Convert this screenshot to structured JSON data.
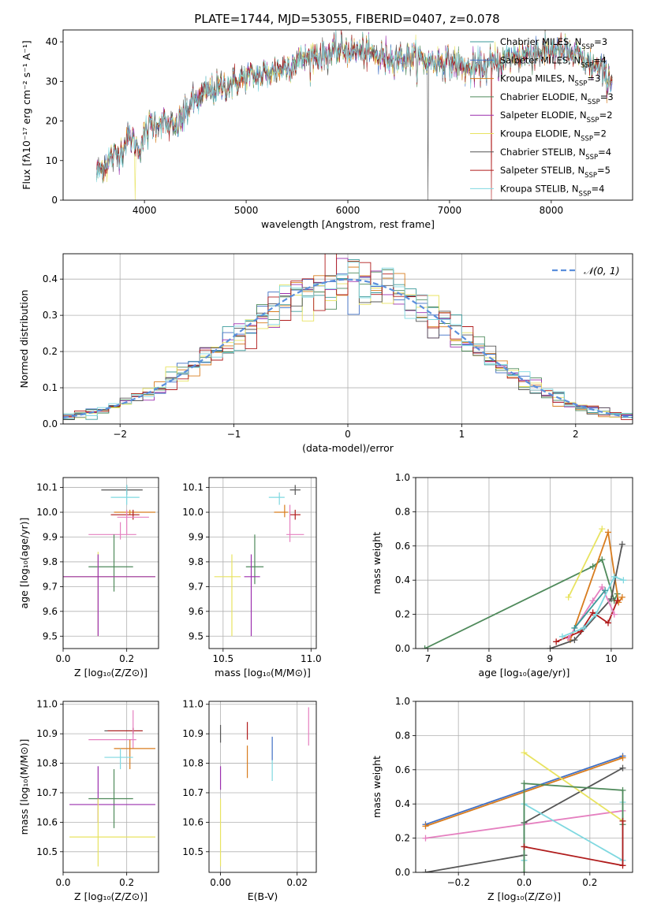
{
  "figure": {
    "title": "PLATE=1744, MJD=53055, FIBERID=0407, z=0.078"
  },
  "chart_data": [
    {
      "id": "spectrum",
      "type": "line",
      "xlabel": "wavelength [Angstrom, rest frame]",
      "ylabel": "Flux [fλ10⁻¹⁷ erg cm⁻² s⁻¹ A⁻¹]",
      "xlim": [
        3200,
        8800
      ],
      "ylim": [
        0,
        43
      ],
      "xticks": [
        4000,
        5000,
        6000,
        7000,
        8000
      ],
      "yticks": [
        0,
        10,
        20,
        30,
        40
      ],
      "grid": false,
      "legend": "right",
      "series": [
        {
          "name": "Chabrier MILES, N",
          "sub": "SSP",
          "suffix": "=3",
          "color": "#3a9a9a"
        },
        {
          "name": "Salpeter MILES, N",
          "sub": "SSP",
          "suffix": "=4",
          "color": "#3f6fc4"
        },
        {
          "name": "Kroupa MILES, N",
          "sub": "SSP",
          "suffix": "=3",
          "color": "#d87c1e"
        },
        {
          "name": "Chabrier ELODIE, N",
          "sub": "SSP",
          "suffix": "=3",
          "color": "#4f8a5b"
        },
        {
          "name": "Salpeter ELODIE, N",
          "sub": "SSP",
          "suffix": "=2",
          "color": "#9b2fae"
        },
        {
          "name": "Kroupa ELODIE, N",
          "sub": "SSP",
          "suffix": "=2",
          "color": "#e8e360"
        },
        {
          "name": "Chabrier STELIB, N",
          "sub": "SSP",
          "suffix": "=4",
          "color": "#555555"
        },
        {
          "name": "Salpeter STELIB, N",
          "sub": "SSP",
          "suffix": "=5",
          "color": "#b01c1c"
        },
        {
          "name": "Kroupa STELIB, N",
          "sub": "SSP",
          "suffix": "=4",
          "color": "#7fd8e0"
        }
      ],
      "continuum": {
        "x": [
          3530,
          3650,
          3750,
          3850,
          3950,
          4050,
          4150,
          4300,
          4450,
          4600,
          4800,
          5000,
          5200,
          5400,
          5600,
          5800,
          6000,
          6200,
          6400,
          6600,
          6800,
          7000,
          7200,
          7400,
          7600,
          7800,
          8000,
          8200,
          8400,
          8600
        ],
        "y": [
          7,
          10,
          12,
          16,
          13,
          19,
          20,
          18,
          24,
          27,
          29,
          31,
          32,
          34,
          36,
          37,
          38,
          37,
          36,
          36,
          35,
          35,
          33,
          34,
          36,
          37,
          38,
          37,
          34,
          30
        ]
      }
    },
    {
      "id": "residuals",
      "type": "histogram",
      "xlabel": "(data-model)/error",
      "ylabel": "Normed distribution",
      "xlim": [
        -2.5,
        2.5
      ],
      "ylim": [
        0,
        0.47
      ],
      "xticks": [
        -2,
        -1,
        0,
        1,
        2
      ],
      "yticks": [
        0.0,
        0.1,
        0.2,
        0.3,
        0.4
      ],
      "grid": true,
      "legend": "top-right",
      "reference": {
        "name": "𝒩(0, 1)",
        "color": "#5b8fdc",
        "style": "dashed"
      },
      "bin_width": 0.1,
      "series_colors": [
        "#3a9a9a",
        "#3f6fc4",
        "#d87c1e",
        "#4f8a5b",
        "#9b2fae",
        "#e8e360",
        "#555555",
        "#b01c1c",
        "#7fd8e0"
      ]
    },
    {
      "id": "age-vs-Z",
      "type": "errorbar",
      "xlabel": "Z [log₁₀(Z/Z⊙)]",
      "ylabel": "age  [log₁₀(age/yr)]",
      "xlim": [
        0,
        0.3
      ],
      "ylim": [
        9.45,
        10.14
      ],
      "xticks": [
        0.0,
        0.2
      ],
      "yticks": [
        9.5,
        9.6,
        9.7,
        9.8,
        9.9,
        10.0,
        10.1
      ],
      "grid": true,
      "points": [
        {
          "x": 0.2,
          "y": 10.09,
          "xerr": [
            0.08,
            0.05
          ],
          "yerr": [
            0.02,
            0.02
          ],
          "color": "#555555"
        },
        {
          "x": 0.2,
          "y": 10.06,
          "xerr": [
            0.05,
            0.04
          ],
          "yerr": [
            0.03,
            0.05
          ],
          "color": "#7fd8e0"
        },
        {
          "x": 0.21,
          "y": 10.0,
          "xerr": [
            0.05,
            0.08
          ],
          "yerr": [
            0.01,
            0.01
          ],
          "color": "#d87c1e"
        },
        {
          "x": 0.22,
          "y": 9.99,
          "xerr": [
            0.07,
            0.02
          ],
          "yerr": [
            0.02,
            0.02
          ],
          "color": "#b01c1c"
        },
        {
          "x": 0.2,
          "y": 9.98,
          "xerr": [
            0.03,
            0.07
          ],
          "yerr": [
            0.07,
            0.03
          ],
          "color": "#e580c0"
        },
        {
          "x": 0.18,
          "y": 9.91,
          "xerr": [
            0.1,
            0.05
          ],
          "yerr": [
            0.02,
            0.05
          ],
          "color": "#e580c0"
        },
        {
          "x": 0.16,
          "y": 9.78,
          "xerr": [
            0.08,
            0.06
          ],
          "yerr": [
            0.1,
            0.13
          ],
          "color": "#4f8a5b"
        },
        {
          "x": 0.11,
          "y": 9.74,
          "xerr": [
            0.11,
            0.18
          ],
          "yerr": [
            0.24,
            0.1
          ],
          "color": "#e8e360"
        },
        {
          "x": 0.11,
          "y": 9.74,
          "xerr": [
            0.11,
            0.18
          ],
          "yerr": [
            0.24,
            0.09
          ],
          "color": "#9b2fae"
        }
      ]
    },
    {
      "id": "age-vs-mass",
      "type": "errorbar",
      "xlabel": "mass [log₁₀(M/M⊙)]",
      "ylabel": "",
      "xlim": [
        10.42,
        11.03
      ],
      "ylim": [
        9.45,
        10.14
      ],
      "xticks": [
        10.5,
        11.0
      ],
      "yticks": [
        9.5,
        9.6,
        9.7,
        9.8,
        9.9,
        10.0,
        10.1
      ],
      "grid": true,
      "points": [
        {
          "x": 10.91,
          "y": 10.09,
          "xerr": [
            0.03,
            0.03
          ],
          "yerr": [
            0.02,
            0.02
          ],
          "color": "#555555"
        },
        {
          "x": 10.82,
          "y": 10.06,
          "xerr": [
            0.06,
            0.03
          ],
          "yerr": [
            0.03,
            0.02
          ],
          "color": "#7fd8e0"
        },
        {
          "x": 10.85,
          "y": 10.0,
          "xerr": [
            0.06,
            0.02
          ],
          "yerr": [
            0.02,
            0.03
          ],
          "color": "#d87c1e"
        },
        {
          "x": 10.91,
          "y": 9.99,
          "xerr": [
            0.03,
            0.03
          ],
          "yerr": [
            0.02,
            0.02
          ],
          "color": "#b01c1c"
        },
        {
          "x": 10.88,
          "y": 9.91,
          "xerr": [
            0.02,
            0.08
          ],
          "yerr": [
            0.03,
            0.12
          ],
          "color": "#e580c0"
        },
        {
          "x": 10.68,
          "y": 9.78,
          "xerr": [
            0.05,
            0.05
          ],
          "yerr": [
            0.07,
            0.13
          ],
          "color": "#4f8a5b"
        },
        {
          "x": 10.55,
          "y": 9.74,
          "xerr": [
            0.1,
            0.05
          ],
          "yerr": [
            0.24,
            0.09
          ],
          "color": "#e8e360"
        },
        {
          "x": 10.66,
          "y": 9.74,
          "xerr": [
            0.04,
            0.05
          ],
          "yerr": [
            0.24,
            0.09
          ],
          "color": "#9b2fae"
        }
      ]
    },
    {
      "id": "weight-vs-age",
      "type": "line",
      "xlabel": "age  [log₁₀(age/yr)]",
      "ylabel": "mass weight",
      "xlim": [
        6.8,
        10.35
      ],
      "ylim": [
        0,
        1
      ],
      "xticks": [
        7,
        8,
        9,
        10
      ],
      "yticks": [
        0.0,
        0.2,
        0.4,
        0.6,
        0.8,
        1.0
      ],
      "grid": true,
      "series": [
        {
          "color": "#4f8a5b",
          "x": [
            6.95,
            9.7,
            9.85,
            10.05,
            10.1
          ],
          "y": [
            0.0,
            0.48,
            0.52,
            0.28,
            0.32
          ]
        },
        {
          "color": "#e8e360",
          "x": [
            9.3,
            9.85
          ],
          "y": [
            0.3,
            0.7
          ]
        },
        {
          "color": "#d87c1e",
          "x": [
            9.33,
            9.95,
            10.12,
            10.18
          ],
          "y": [
            0.05,
            0.68,
            0.27,
            0.3
          ]
        },
        {
          "color": "#555555",
          "x": [
            9.0,
            9.4,
            10.0,
            10.18
          ],
          "y": [
            0.0,
            0.05,
            0.29,
            0.61
          ]
        },
        {
          "color": "#b01c1c",
          "x": [
            9.1,
            9.5,
            9.7,
            9.95,
            10.1
          ],
          "y": [
            0.04,
            0.1,
            0.21,
            0.15,
            0.28
          ]
        },
        {
          "color": "#e580c0",
          "x": [
            9.3,
            9.7,
            9.85,
            10.05
          ],
          "y": [
            0.06,
            0.28,
            0.36,
            0.2
          ]
        },
        {
          "color": "#7fd8e0",
          "x": [
            9.2,
            9.55,
            9.75,
            10.05,
            10.2
          ],
          "y": [
            0.07,
            0.12,
            0.2,
            0.42,
            0.4
          ]
        },
        {
          "color": "#3a9a9a",
          "x": [
            9.4,
            9.9
          ],
          "y": [
            0.12,
            0.34
          ]
        }
      ]
    },
    {
      "id": "mass-vs-Z",
      "type": "errorbar",
      "xlabel": "Z [log₁₀(Z/Z⊙)]",
      "ylabel": "mass [log₁₀(M/M⊙)]",
      "xlim": [
        0,
        0.3
      ],
      "ylim": [
        10.43,
        11.01
      ],
      "xticks": [
        0.0,
        0.2
      ],
      "yticks": [
        10.5,
        10.6,
        10.7,
        10.8,
        10.9,
        11.0
      ],
      "grid": true,
      "points": [
        {
          "x": 0.22,
          "y": 10.91,
          "xerr": [
            0.09,
            0.03
          ],
          "yerr": [
            0.01,
            0.01
          ],
          "color": "#555555"
        },
        {
          "x": 0.22,
          "y": 10.91,
          "xerr": [
            0.08,
            0.03
          ],
          "yerr": [
            0.01,
            0.01
          ],
          "color": "#b01c1c"
        },
        {
          "x": 0.22,
          "y": 10.88,
          "xerr": [
            0.14,
            0.01
          ],
          "yerr": [
            0.03,
            0.1
          ],
          "color": "#e580c0"
        },
        {
          "x": 0.21,
          "y": 10.85,
          "xerr": [
            0.05,
            0.08
          ],
          "yerr": [
            0.07,
            0.03
          ],
          "color": "#d87c1e"
        },
        {
          "x": 0.18,
          "y": 10.82,
          "xerr": [
            0.05,
            0.04
          ],
          "yerr": [
            0.04,
            0.03
          ],
          "color": "#7fd8e0"
        },
        {
          "x": 0.16,
          "y": 10.68,
          "xerr": [
            0.08,
            0.06
          ],
          "yerr": [
            0.1,
            0.1
          ],
          "color": "#4f8a5b"
        },
        {
          "x": 0.11,
          "y": 10.66,
          "xerr": [
            0.09,
            0.18
          ],
          "yerr": [
            0.06,
            0.13
          ],
          "color": "#9b2fae"
        },
        {
          "x": 0.11,
          "y": 10.55,
          "xerr": [
            0.09,
            0.18
          ],
          "yerr": [
            0.1,
            0.13
          ],
          "color": "#e8e360"
        }
      ]
    },
    {
      "id": "mass-vs-EBV",
      "type": "errorbar",
      "xlabel": "E(B-V)",
      "ylabel": "",
      "xlim": [
        -0.003,
        0.025
      ],
      "ylim": [
        10.43,
        11.01
      ],
      "xticks": [
        0.0,
        0.02
      ],
      "yticks": [
        10.5,
        10.6,
        10.7,
        10.8,
        10.9,
        11.0
      ],
      "grid": true,
      "points": [
        {
          "x": 0.0,
          "y": 10.9,
          "xerr": [
            0,
            0
          ],
          "yerr": [
            0.03,
            0.03
          ],
          "color": "#555555"
        },
        {
          "x": 0.0,
          "y": 10.75,
          "xerr": [
            0,
            0
          ],
          "yerr": [
            0.04,
            0.04
          ],
          "color": "#9b2fae"
        },
        {
          "x": 0.0,
          "y": 10.6,
          "xerr": [
            0,
            0
          ],
          "yerr": [
            0.15,
            0.08
          ],
          "color": "#e8e360"
        },
        {
          "x": 0.007,
          "y": 10.91,
          "xerr": [
            0,
            0
          ],
          "yerr": [
            0.03,
            0.03
          ],
          "color": "#b01c1c"
        },
        {
          "x": 0.007,
          "y": 10.8,
          "xerr": [
            0,
            0
          ],
          "yerr": [
            0.05,
            0.06
          ],
          "color": "#d87c1e"
        },
        {
          "x": 0.0135,
          "y": 10.85,
          "xerr": [
            0,
            0
          ],
          "yerr": [
            0.04,
            0.04
          ],
          "color": "#3f6fc4"
        },
        {
          "x": 0.0135,
          "y": 10.77,
          "xerr": [
            0,
            0
          ],
          "yerr": [
            0.03,
            0.04
          ],
          "color": "#7fd8e0"
        },
        {
          "x": 0.023,
          "y": 10.92,
          "xerr": [
            0,
            0
          ],
          "yerr": [
            0.06,
            0.07
          ],
          "color": "#e580c0"
        }
      ]
    },
    {
      "id": "weight-vs-Z",
      "type": "line",
      "xlabel": "Z [log₁₀(Z/Z⊙)]",
      "ylabel": "mass weight",
      "xlim": [
        -0.33,
        0.33
      ],
      "ylim": [
        0,
        1
      ],
      "xticks": [
        -0.2,
        0.0,
        0.2
      ],
      "yticks": [
        0.0,
        0.2,
        0.4,
        0.6,
        0.8,
        1.0
      ],
      "grid": true,
      "series": [
        {
          "color": "#3f6fc4",
          "x": [
            -0.3,
            0.3
          ],
          "y": [
            0.28,
            0.68
          ]
        },
        {
          "color": "#d87c1e",
          "x": [
            -0.3,
            0.3
          ],
          "y": [
            0.27,
            0.67
          ]
        },
        {
          "color": "#e580c0",
          "x": [
            -0.3,
            0.3
          ],
          "y": [
            0.2,
            0.36
          ]
        },
        {
          "color": "#555555",
          "x": [
            -0.3,
            0.0,
            0.0,
            0.3
          ],
          "y": [
            0.0,
            0.1,
            0.29,
            0.61
          ]
        },
        {
          "color": "#e8e360",
          "x": [
            0.0,
            0.3
          ],
          "y": [
            0.7,
            0.3
          ]
        },
        {
          "color": "#7fd8e0",
          "x": [
            0.0,
            0.0,
            0.3,
            0.3
          ],
          "y": [
            0.07,
            0.4,
            0.07,
            0.41
          ]
        },
        {
          "color": "#4f8a5b",
          "x": [
            0.0,
            0.0,
            0.3,
            0.3
          ],
          "y": [
            0.0,
            0.52,
            0.48,
            0.28
          ]
        },
        {
          "color": "#b01c1c",
          "x": [
            0.0,
            0.3,
            0.3
          ],
          "y": [
            0.15,
            0.04,
            0.3
          ]
        }
      ]
    }
  ]
}
